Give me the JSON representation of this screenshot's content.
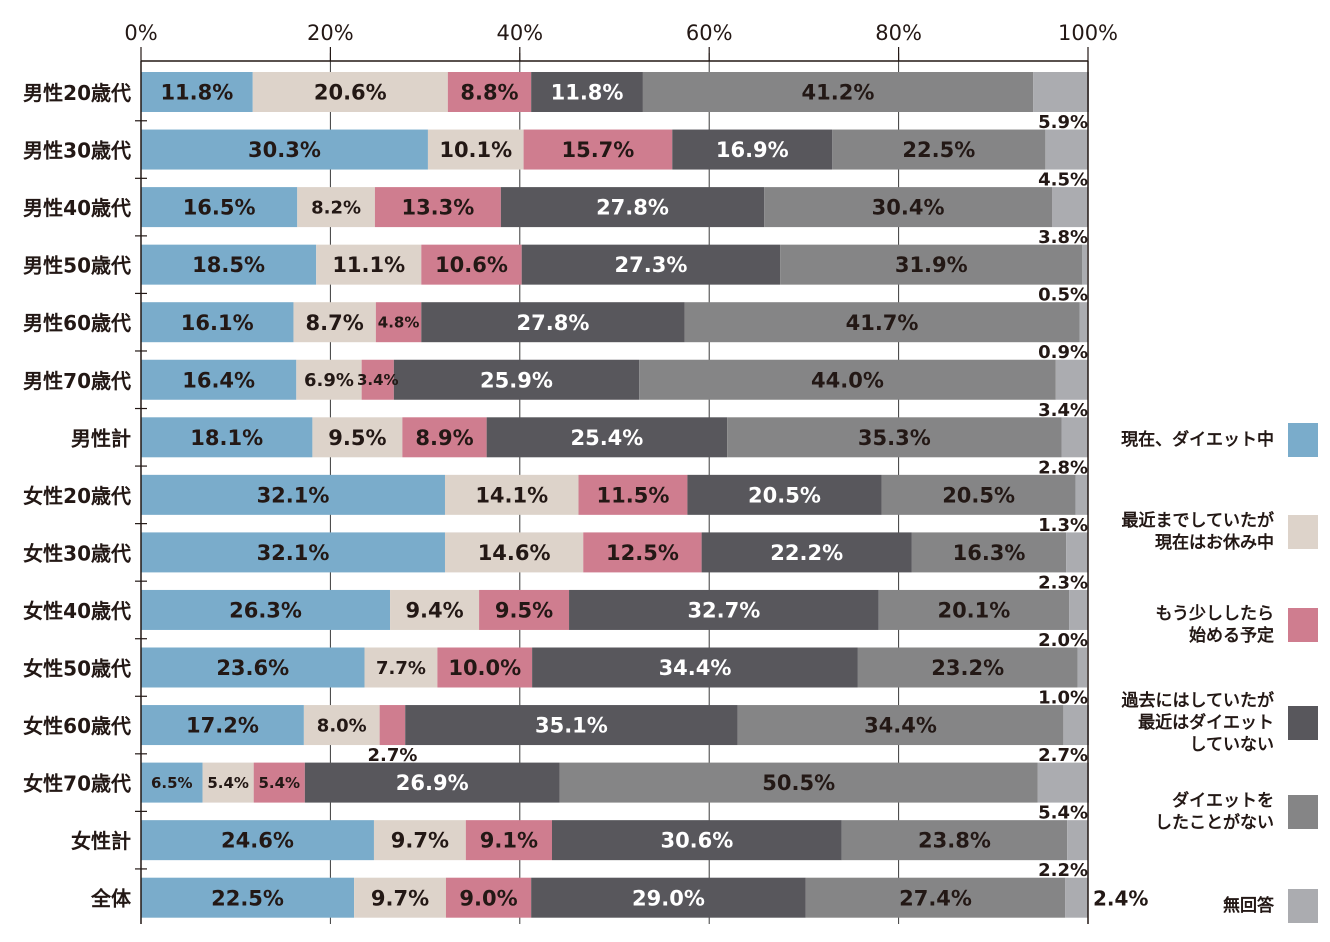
{
  "chart_data": {
    "type": "bar",
    "orientation": "horizontal",
    "stacked": true,
    "title": "",
    "xlabel": "",
    "ylabel": "",
    "xlim": [
      0,
      100
    ],
    "x_ticks": [
      "0%",
      "20%",
      "40%",
      "60%",
      "80%",
      "100%"
    ],
    "grid": true,
    "legend_position": "right",
    "categories": [
      "男性20歳代",
      "男性30歳代",
      "男性40歳代",
      "男性50歳代",
      "男性60歳代",
      "男性70歳代",
      "男性計",
      "女性20歳代",
      "女性30歳代",
      "女性40歳代",
      "女性50歳代",
      "女性60歳代",
      "女性70歳代",
      "女性計",
      "全体"
    ],
    "series": [
      {
        "name": "現在、ダイエット中",
        "color": "#7aaccb",
        "text_color": "#231815",
        "values": [
          11.8,
          30.3,
          16.5,
          18.5,
          16.1,
          16.4,
          18.1,
          32.1,
          32.1,
          26.3,
          23.6,
          17.2,
          6.5,
          24.6,
          22.5
        ]
      },
      {
        "name": "最近までしていたが\n現在はお休み中",
        "color": "#ddd3ca",
        "text_color": "#231815",
        "values": [
          20.6,
          10.1,
          8.2,
          11.1,
          8.7,
          6.9,
          9.5,
          14.1,
          14.6,
          9.4,
          7.7,
          8.0,
          5.4,
          9.7,
          9.7
        ]
      },
      {
        "name": "もう少ししたら\n始める予定",
        "color": "#cf7d8f",
        "text_color": "#231815",
        "values": [
          8.8,
          15.7,
          13.3,
          10.6,
          4.8,
          3.4,
          8.9,
          11.5,
          12.5,
          9.5,
          10.0,
          2.7,
          5.4,
          9.1,
          9.0
        ]
      },
      {
        "name": "過去にはしていたが\n最近はダイエット\nしていない",
        "color": "#58575c",
        "text_color": "#ffffff",
        "values": [
          11.8,
          16.9,
          27.8,
          27.3,
          27.8,
          25.9,
          25.4,
          20.5,
          22.2,
          32.7,
          34.4,
          35.1,
          26.9,
          30.6,
          29.0
        ]
      },
      {
        "name": "ダイエットを\nしたことがない",
        "color": "#858586",
        "text_color": "#231815",
        "values": [
          41.2,
          22.5,
          30.4,
          31.9,
          41.7,
          44.0,
          35.3,
          20.5,
          16.3,
          20.1,
          23.2,
          34.4,
          50.5,
          23.8,
          27.4
        ]
      },
      {
        "name": "無回答",
        "color": "#abacb0",
        "text_color": "#231815",
        "values": [
          5.9,
          4.5,
          3.8,
          0.5,
          0.9,
          3.4,
          2.8,
          1.3,
          2.3,
          2.0,
          1.0,
          2.7,
          5.4,
          2.2,
          2.4
        ]
      }
    ],
    "labels": [
      [
        "11.8%",
        "20.6%",
        "8.8%",
        "11.8%",
        "41.2%",
        "5.9%"
      ],
      [
        "30.3%",
        "10.1%",
        "15.7%",
        "16.9%",
        "22.5%",
        "4.5%"
      ],
      [
        "16.5%",
        "8.2%",
        "13.3%",
        "27.8%",
        "30.4%",
        "3.8%"
      ],
      [
        "18.5%",
        "11.1%",
        "10.6%",
        "27.3%",
        "31.9%",
        "0.5%"
      ],
      [
        "16.1%",
        "8.7%",
        "4.8%",
        "27.8%",
        "41.7%",
        "0.9%"
      ],
      [
        "16.4%",
        "6.9%",
        "3.4%",
        "25.9%",
        "44.0%",
        "3.4%"
      ],
      [
        "18.1%",
        "9.5%",
        "8.9%",
        "25.4%",
        "35.3%",
        "2.8%"
      ],
      [
        "32.1%",
        "14.1%",
        "11.5%",
        "20.5%",
        "20.5%",
        "1.3%"
      ],
      [
        "32.1%",
        "14.6%",
        "12.5%",
        "22.2%",
        "16.3%",
        "2.3%"
      ],
      [
        "26.3%",
        "9.4%",
        "9.5%",
        "32.7%",
        "20.1%",
        "2.0%"
      ],
      [
        "23.6%",
        "7.7%",
        "10.0%",
        "34.4%",
        "23.2%",
        "1.0%"
      ],
      [
        "17.2%",
        "8.0%",
        "2.7%",
        "35.1%",
        "34.4%",
        "2.7%"
      ],
      [
        "6.5%",
        "5.4%",
        "5.4%",
        "26.9%",
        "50.5%",
        "5.4%"
      ],
      [
        "24.6%",
        "9.7%",
        "9.1%",
        "30.6%",
        "23.8%",
        "2.2%"
      ],
      [
        "22.5%",
        "9.7%",
        "9.0%",
        "29.0%",
        "27.4%",
        "2.4%"
      ]
    ]
  }
}
